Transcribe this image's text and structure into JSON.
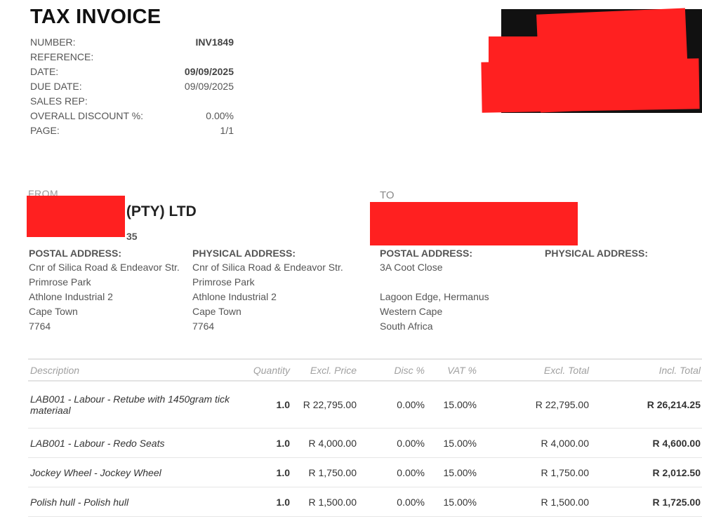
{
  "header": {
    "title": "TAX INVOICE"
  },
  "meta": [
    {
      "label": "NUMBER:",
      "value": "INV1849",
      "bold": true
    },
    {
      "label": "REFERENCE:",
      "value": "",
      "bold": false
    },
    {
      "label": "DATE:",
      "value": "09/09/2025",
      "bold": true
    },
    {
      "label": "DUE DATE:",
      "value": "09/09/2025",
      "bold": false
    },
    {
      "label": "SALES REP:",
      "value": "",
      "bold": false
    },
    {
      "label": "OVERALL DISCOUNT %:",
      "value": "0.00%",
      "bold": false
    },
    {
      "label": "PAGE:",
      "value": "1/1",
      "bold": false
    }
  ],
  "from": {
    "label": "FROM",
    "company": "E (PTY) LTD",
    "vat": "35",
    "postal_heading": "POSTAL ADDRESS:",
    "postal": [
      "Cnr of Silica Road & Endeavor Str.",
      "Primrose Park",
      "Athlone Industrial 2",
      "Cape Town",
      "7764"
    ],
    "physical_heading": "PHYSICAL ADDRESS:",
    "physical": [
      "Cnr of Silica Road & Endeavor Str.",
      "Primrose Park",
      "Athlone Industrial 2",
      "Cape Town",
      "7764"
    ]
  },
  "to": {
    "label": "TO",
    "postal_heading": "POSTAL ADDRESS:",
    "postal": [
      "3A Coot Close",
      "",
      "Lagoon Edge, Hermanus",
      "Western Cape",
      "South Africa"
    ],
    "physical_heading": "PHYSICAL ADDRESS:"
  },
  "table": {
    "headers": {
      "description": "Description",
      "quantity": "Quantity",
      "excl_price": "Excl. Price",
      "disc": "Disc %",
      "vat": "VAT %",
      "excl_total": "Excl. Total",
      "incl_total": "Incl. Total"
    },
    "rows": [
      {
        "description": "LAB001 - Labour - Retube with 1450gram tick materiaal",
        "quantity": "1.0",
        "excl_price": "R 22,795.00",
        "disc": "0.00%",
        "vat": "15.00%",
        "excl_total": "R 22,795.00",
        "incl_total": "R 26,214.25"
      },
      {
        "description": "LAB001 - Labour - Redo Seats",
        "quantity": "1.0",
        "excl_price": "R 4,000.00",
        "disc": "0.00%",
        "vat": "15.00%",
        "excl_total": "R 4,000.00",
        "incl_total": "R 4,600.00"
      },
      {
        "description": "Jockey Wheel - Jockey Wheel",
        "quantity": "1.0",
        "excl_price": "R 1,750.00",
        "disc": "0.00%",
        "vat": "15.00%",
        "excl_total": "R 1,750.00",
        "incl_total": "R 2,012.50"
      },
      {
        "description": "Polish hull - Polish hull",
        "quantity": "1.0",
        "excl_price": "R 1,500.00",
        "disc": "0.00%",
        "vat": "15.00%",
        "excl_total": "R 1,500.00",
        "incl_total": "R 1,725.00"
      }
    ]
  }
}
